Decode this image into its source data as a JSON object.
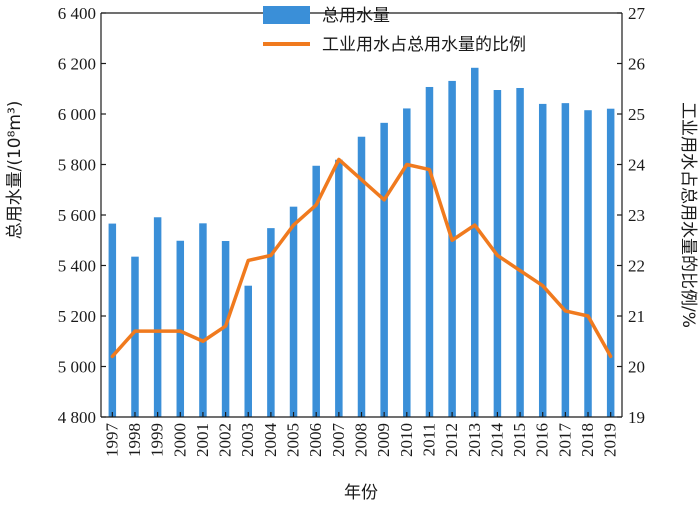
{
  "chart_data": {
    "type": "bar+line",
    "title": "",
    "categories": [
      "1997",
      "1998",
      "1999",
      "2000",
      "2001",
      "2002",
      "2003",
      "2004",
      "2005",
      "2006",
      "2007",
      "2008",
      "2009",
      "2010",
      "2011",
      "2012",
      "2013",
      "2014",
      "2015",
      "2016",
      "2017",
      "2018",
      "2019"
    ],
    "series": [
      {
        "name": "总用水量",
        "type": "bar",
        "axis": "left",
        "color": "#3a8fd8",
        "values": [
          5566,
          5435,
          5591,
          5498,
          5567,
          5497,
          5320,
          5548,
          5633,
          5795,
          5819,
          5910,
          5965,
          6022,
          6107,
          6131,
          6183,
          6095,
          6103,
          6040,
          6043,
          6015,
          6021
        ]
      },
      {
        "name": "工业用水占总用水量的比例",
        "type": "line",
        "axis": "right",
        "color": "#f07a1e",
        "values": [
          20.2,
          20.7,
          20.7,
          20.7,
          20.5,
          20.8,
          22.1,
          22.2,
          22.8,
          23.2,
          24.1,
          23.7,
          23.3,
          24.0,
          23.9,
          22.5,
          22.8,
          22.2,
          21.9,
          21.6,
          21.1,
          21.0,
          20.2
        ]
      }
    ],
    "xlabel": "年份",
    "ylabel_left": "总用水量/(10⁸m³)",
    "ylabel_right": "工业用水占总用水量的比例/%",
    "ylim_left": [
      4800,
      6400
    ],
    "ylim_right": [
      19,
      27
    ],
    "yticks_left": [
      "4 800",
      "5 000",
      "5 200",
      "5 400",
      "5 600",
      "5 800",
      "6 000",
      "6 200",
      "6 400"
    ],
    "yticks_right": [
      "19",
      "20",
      "21",
      "22",
      "23",
      "24",
      "25",
      "26",
      "27"
    ],
    "legend_position": "top-right",
    "grid": false
  }
}
